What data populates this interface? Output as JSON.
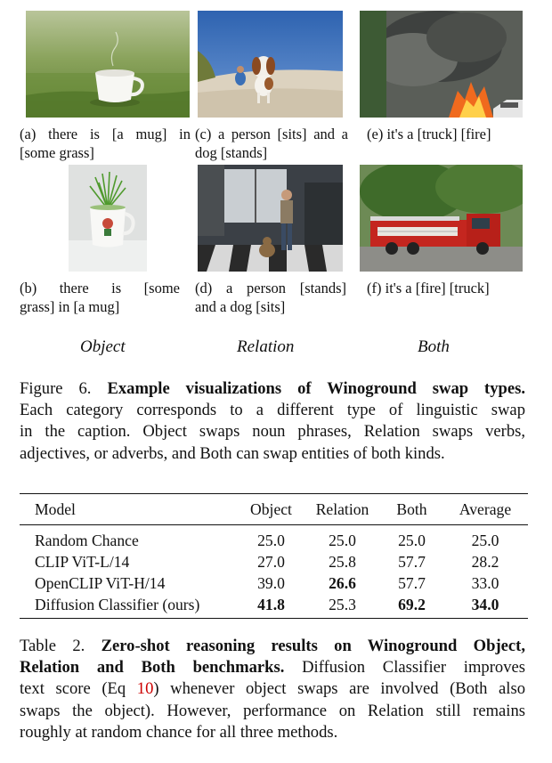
{
  "figure": {
    "images": [
      {
        "id": "a",
        "caption_line1": "(a) there is [a mug] in",
        "caption_line2": "[some grass]"
      },
      {
        "id": "c",
        "caption_line1": "(c) a person [sits] and a",
        "caption_line2": "dog [stands]"
      },
      {
        "id": "e",
        "caption_line1": "(e) it's a [truck] [fire]",
        "caption_line2": ""
      },
      {
        "id": "b",
        "caption_line1": "(b)  there  is  [some",
        "caption_line2": "grass] in [a mug]"
      },
      {
        "id": "d",
        "caption_line1": "(d)  a  person  [stands]",
        "caption_line2": "and a dog [sits]"
      },
      {
        "id": "f",
        "caption_line1": "(f) it's a [fire] [truck]",
        "caption_line2": ""
      }
    ],
    "categories": [
      "Object",
      "Relation",
      "Both"
    ],
    "caption": {
      "label": "Figure 6.",
      "bold": "Example visualizations of Winoground swap types.",
      "lines": [
        "Each category corresponds to a different type of linguistic swap",
        "in the caption. Object swaps noun phrases, Relation swaps verbs,",
        "adjectives, or adverbs, and Both can swap entities of both kinds."
      ]
    }
  },
  "table": {
    "headers": [
      "Model",
      "Object",
      "Relation",
      "Both",
      "Average"
    ],
    "rows": [
      {
        "model": "Random Chance",
        "object": "25.0",
        "relation": "25.0",
        "both": "25.0",
        "average": "25.0"
      },
      {
        "model": "CLIP ViT-L/14",
        "object": "27.0",
        "relation": "25.8",
        "both": "57.7",
        "average": "28.2"
      },
      {
        "model": "OpenCLIP ViT-H/14",
        "object": "39.0",
        "relation": "26.6",
        "both": "57.7",
        "average": "33.0"
      },
      {
        "model": "Diffusion Classifier (ours)",
        "object": "41.8",
        "relation": "25.3",
        "both": "69.2",
        "average": "34.0"
      }
    ],
    "caption": {
      "label": "Table 2.",
      "bold_line1": "Zero-shot reasoning results on Winoground Object,",
      "bold_line2": "Relation and Both benchmarks.",
      "line2_rest": " Diffusion Classifier improves",
      "line3_pre": "text score (Eq ",
      "line3_ref": "10",
      "line3_post": ") whenever object swaps are involved (Both also",
      "line4": "swaps the object). However, performance on Relation still remains",
      "line5": "roughly at random chance for all three methods."
    }
  },
  "colors": {
    "reference": "#cc0000"
  }
}
